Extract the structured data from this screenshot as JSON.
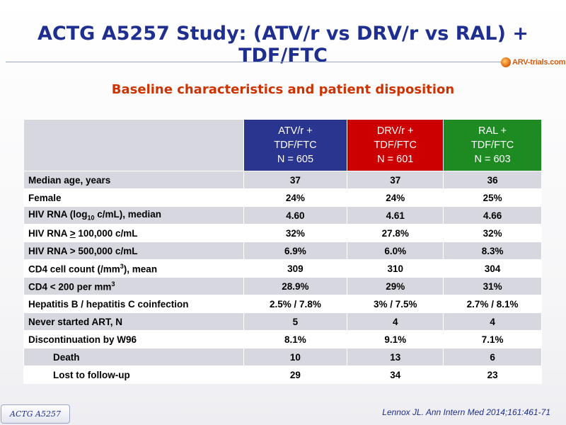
{
  "slide": {
    "title": "ACTG A5257 Study: (ATV/r vs DRV/r vs RAL) + TDF/FTC",
    "logo_text": "ARV-trials.com",
    "subtitle": "Baseline characteristics and patient disposition",
    "citation": "Lennox JL. Ann Intern Med 2014;161:461-71",
    "badge": "ACTG A5257",
    "colors": {
      "title": "#1f2f8f",
      "subtitle": "#cc3300",
      "atv": "#2a3590",
      "drv": "#cc0000",
      "ral": "#1e8a22"
    }
  },
  "table": {
    "headers": [
      {
        "line1": "ATV/r +",
        "line2": "TDF/FTC",
        "line3": "N = 605"
      },
      {
        "line1": "DRV/r +",
        "line2": "TDF/FTC",
        "line3": "N = 601"
      },
      {
        "line1": "RAL +",
        "line2": "TDF/FTC",
        "line3": "N = 603"
      }
    ],
    "rows": [
      {
        "label": "Median age, years",
        "values": [
          "37",
          "37",
          "36"
        ]
      },
      {
        "label": "Female",
        "values": [
          "24%",
          "24%",
          "25%"
        ]
      },
      {
        "label_pre": "HIV RNA (log",
        "label_sub": "10",
        "label_post": " c/mL), median",
        "values": [
          "4.60",
          "4.61",
          "4.66"
        ]
      },
      {
        "label_pre": "HIV RNA ",
        "label_u": ">",
        "label_post": " 100,000 c/mL",
        "values": [
          "32%",
          "27.8%",
          "32%"
        ]
      },
      {
        "label": "HIV RNA > 500,000 c/mL",
        "values": [
          "6.9%",
          "6.0%",
          "8.3%"
        ]
      },
      {
        "label_pre": "CD4 cell count (/mm",
        "label_sup": "3",
        "label_post": "), mean",
        "values": [
          "309",
          "310",
          "304"
        ]
      },
      {
        "label_pre": "CD4 < 200 per mm",
        "label_sup": "3",
        "label_post": "",
        "values": [
          "28.9%",
          "29%",
          "31%"
        ]
      },
      {
        "label": "Hepatitis B / hepatitis C coinfection",
        "values": [
          "2.5% / 7.8%",
          "3% / 7.5%",
          "2.7% / 8.1%"
        ]
      },
      {
        "label": "Never started ART, N",
        "values": [
          "5",
          "4",
          "4"
        ]
      },
      {
        "label": "Discontinuation by W96",
        "values": [
          "8.1%",
          "9.1%",
          "7.1%"
        ]
      },
      {
        "label": "Death",
        "values": [
          "10",
          "13",
          "6"
        ]
      },
      {
        "label": "Lost to follow-up",
        "values": [
          "29",
          "34",
          "23"
        ]
      }
    ]
  }
}
